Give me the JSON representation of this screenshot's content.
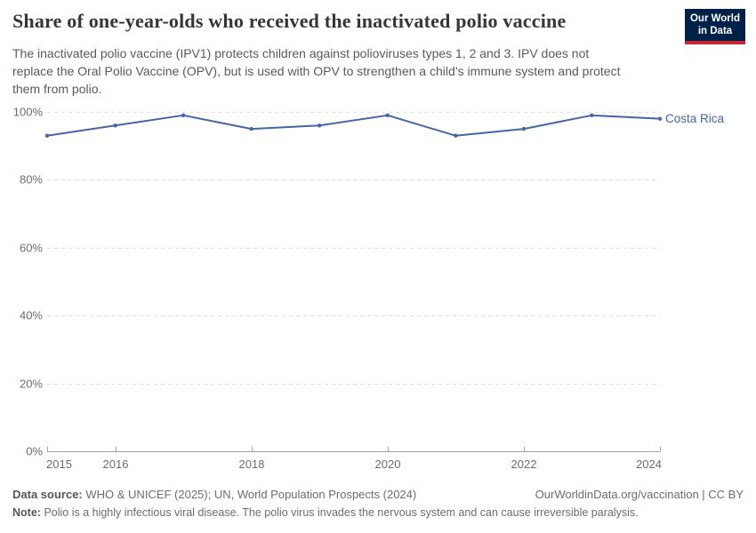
{
  "header": {
    "title": "Share of one-year-olds who received the inactivated polio vaccine",
    "subtitle_lines": [
      "The inactivated polio vaccine (IPV1) protects children against polioviruses types 1, 2 and 3. IPV does not",
      "replace the Oral Polio Vaccine (OPV), but is used with OPV to strengthen a child’s immune system and protect",
      "them from polio."
    ],
    "logo": {
      "line1": "Our World",
      "line2": "in Data"
    }
  },
  "colors": {
    "line": "#4565a3",
    "grid": "#dcdcdc",
    "axis": "#a3a3a3",
    "tick_text": "#6d6d6d",
    "logo_navy": "#002147",
    "logo_red": "#c42830"
  },
  "chart_data": {
    "type": "line",
    "title": "Share of one-year-olds who received the inactivated polio vaccine",
    "x": [
      2015,
      2016,
      2017,
      2018,
      2019,
      2020,
      2021,
      2022,
      2023,
      2024
    ],
    "series": [
      {
        "name": "Costa Rica",
        "values": [
          93,
          96,
          99,
          95,
          96,
          99,
          93,
          95,
          99,
          98
        ],
        "color": "#4565a3"
      }
    ],
    "xlabel": "",
    "ylabel": "",
    "ylim": [
      0,
      100
    ],
    "y_ticks": [
      0,
      20,
      40,
      60,
      80,
      100
    ],
    "y_tick_suffix": "%",
    "x_tick_labels": [
      2015,
      2016,
      2018,
      2020,
      2022,
      2024
    ],
    "grid": "horizontal-dashed",
    "legend": "end-of-line-label"
  },
  "footer": {
    "data_source_label": "Data source:",
    "data_source_text": "WHO & UNICEF (2025); UN, World Population Prospects (2024)",
    "right_text": "OurWorldinData.org/vaccination | CC BY",
    "note_label": "Note:",
    "note_text": "Polio is a highly infectious viral disease. The polio virus invades the nervous system and can cause irreversible paralysis."
  }
}
